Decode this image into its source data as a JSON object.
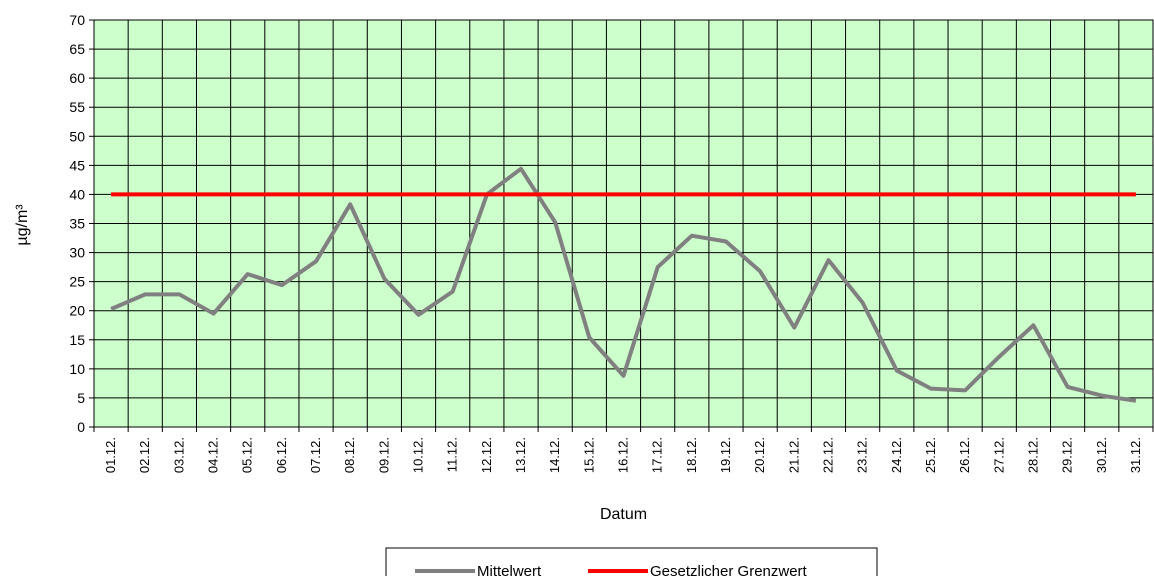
{
  "chart_data": {
    "type": "line",
    "xlabel": "Datum",
    "ylabel": "µg/m³",
    "ylim": [
      0,
      70
    ],
    "ytick_step": 5,
    "grid": true,
    "plot_background": "#ccffcc",
    "legend_position": "bottom-center",
    "categories": [
      "01.12.",
      "02.12.",
      "03.12.",
      "04.12.",
      "05.12.",
      "06.12.",
      "07.12.",
      "08.12.",
      "09.12.",
      "10.12.",
      "11.12.",
      "12.12.",
      "13.12.",
      "14.12.",
      "15.12.",
      "16.12.",
      "17.12.",
      "18.12.",
      "19.12.",
      "20.12.",
      "21.12.",
      "22.12.",
      "23.12.",
      "24.12.",
      "25.12.",
      "26.12.",
      "27.12.",
      "28.12.",
      "29.12.",
      "30.12.",
      "31.12."
    ],
    "yticks": [
      "0",
      "5",
      "10",
      "15",
      "20",
      "25",
      "30",
      "35",
      "40",
      "45",
      "50",
      "55",
      "60",
      "65",
      "70"
    ],
    "series": [
      {
        "name": "Mittelwert",
        "color": "#808080",
        "values": [
          20.3,
          22.8,
          22.8,
          19.5,
          26.3,
          24.4,
          28.5,
          38.3,
          25.5,
          19.3,
          23.3,
          40.0,
          44.4,
          35.2,
          15.4,
          8.8,
          27.5,
          32.9,
          31.9,
          26.8,
          17.1,
          28.7,
          21.4,
          9.7,
          6.6,
          6.3,
          12.1,
          17.5,
          6.9,
          5.4,
          4.5
        ]
      },
      {
        "name": "Gesetzlicher  Grenzwert",
        "color": "#ff0000",
        "values": [
          40,
          40,
          40,
          40,
          40,
          40,
          40,
          40,
          40,
          40,
          40,
          40,
          40,
          40,
          40,
          40,
          40,
          40,
          40,
          40,
          40,
          40,
          40,
          40,
          40,
          40,
          40,
          40,
          40,
          40,
          40
        ]
      }
    ]
  }
}
